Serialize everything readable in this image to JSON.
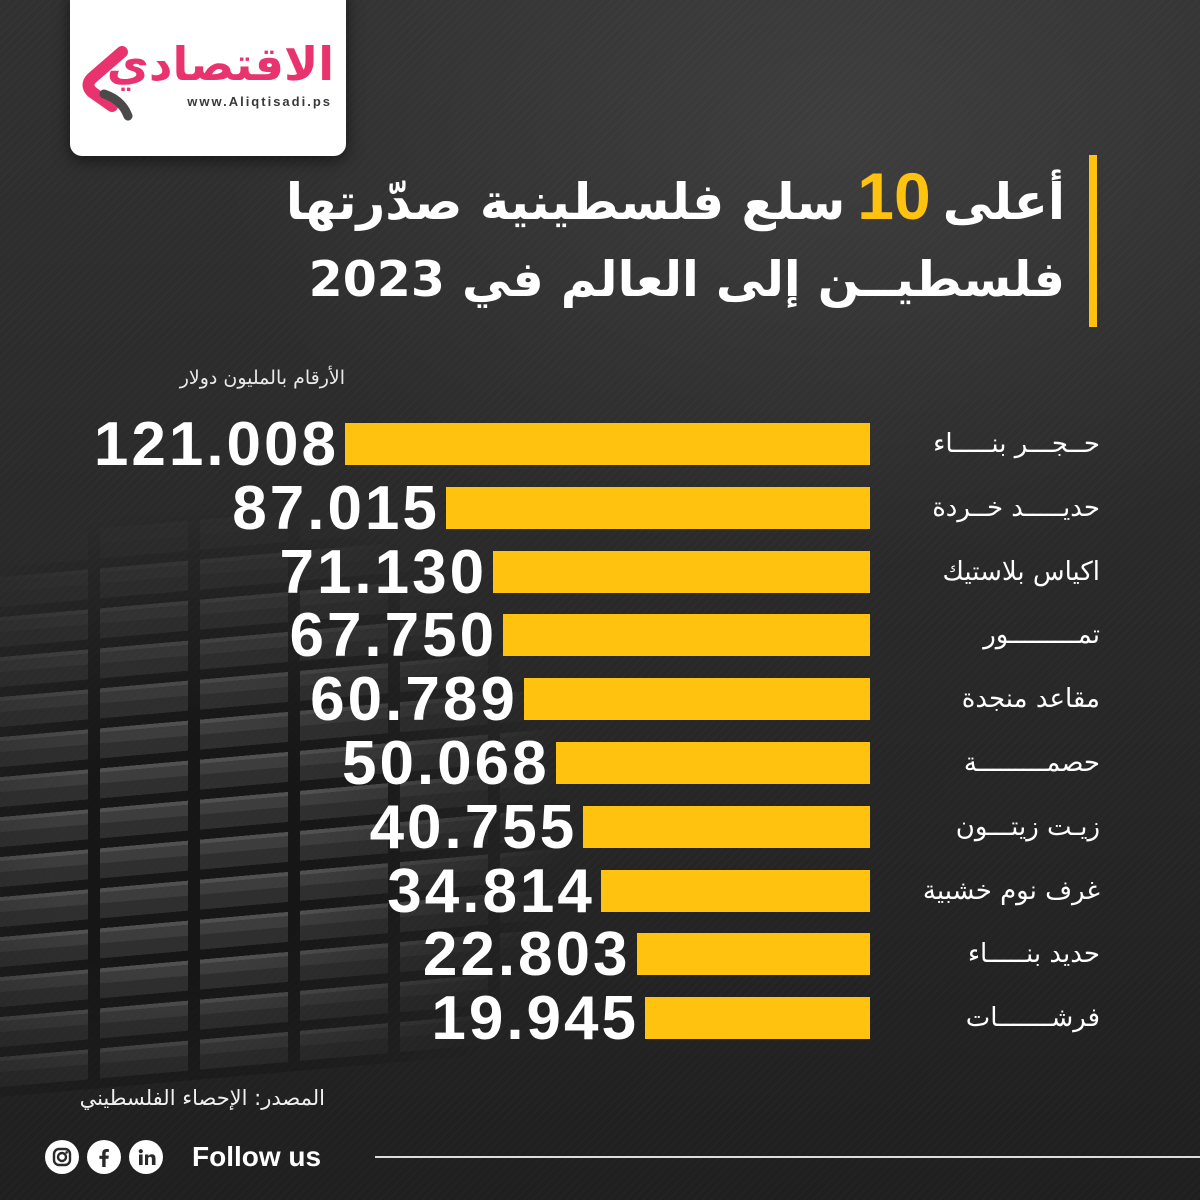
{
  "brand": {
    "name": "الاقتصادي",
    "url": "www.Aliqtisadi.ps",
    "primary_color": "#E8336F",
    "logo_icon": "aliqtisadi-logo-icon"
  },
  "chart_data": {
    "type": "bar",
    "orientation": "horizontal",
    "title": {
      "line1_start": "أعلى",
      "highlight": "10",
      "line1_end": "سلع فلسطينية صدّرتها",
      "line2": "فلسطيــن إلى العالم في 2023"
    },
    "subtitle": "الأرقام بالمليون دولار",
    "categories": [
      "حــجـــر بنـــــاء",
      "حديـــــد خــردة",
      "اكياس بلاستيك",
      "تمـــــــــور",
      "مقاعد منجدة",
      "حصمـــــــــة",
      "زيـت زيتـــون",
      "غرف نوم خشبية",
      "حديد بنـــــاء",
      "فرشـــــــات"
    ],
    "values": [
      121.008,
      87.015,
      71.13,
      67.75,
      60.789,
      50.068,
      40.755,
      34.814,
      22.803,
      19.945
    ],
    "data_labels": [
      "121.008",
      "87.015",
      "71.130",
      "67.750",
      "60.789",
      "50.068",
      "40.755",
      "34.814",
      "22.803",
      "19.945"
    ],
    "grid": false,
    "has_legend": false,
    "bar_color": "#FFC20E",
    "source": "المصدر: الإحصاء الفلسطيني"
  },
  "footer": {
    "follow_label": "Follow us",
    "social_icons": [
      "instagram-icon",
      "facebook-icon",
      "linkedin-icon"
    ]
  },
  "colors": {
    "background": "#2a2a2a",
    "accent": "#FFC20E",
    "text": "#FFFFFF"
  }
}
